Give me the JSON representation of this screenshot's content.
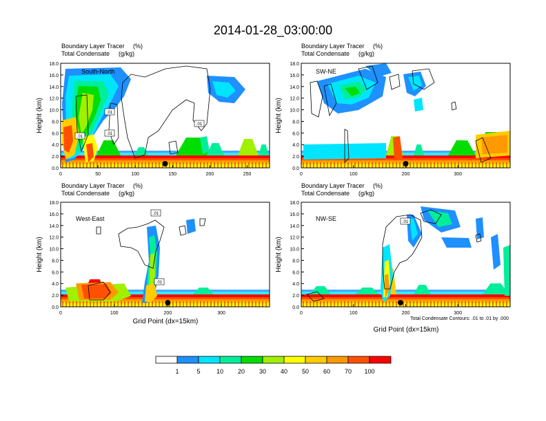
{
  "title": "2014-01-28_03:00:00",
  "panel_header": {
    "line1": "Boundary Layer Tracer",
    "line1_unit": "(%)",
    "line2": "Total Condensate",
    "line2_unit": "(g/kg)"
  },
  "xaxis_label": "Grid Point (dx=15km)",
  "yaxis_label": "Height (km)",
  "contour_note": "Total Condensate Contours: .01 to .01 by .000",
  "colorbar": {
    "labels": [
      "1",
      "5",
      "10",
      "20",
      "30",
      "40",
      "50",
      "60",
      "70",
      "100"
    ],
    "colors": [
      "#ffffff",
      "#1e90ff",
      "#00e5ff",
      "#00ee9a",
      "#00dd00",
      "#a0f000",
      "#ffff00",
      "#ffcc00",
      "#ff9900",
      "#ff5000",
      "#ff0000"
    ]
  },
  "chart_data": [
    {
      "type": "heatmap",
      "name": "South-North",
      "xlim": [
        0,
        280
      ],
      "xticks": [
        0,
        50,
        100,
        150,
        200,
        250
      ],
      "ylim": [
        0,
        18
      ],
      "yticks": [
        "0.0",
        "2.0",
        "4.0",
        "6.0",
        "8.0",
        "10.0",
        "12.0",
        "14.0",
        "16.0",
        "18.0"
      ],
      "contour_labels": [
        ".01",
        ".01",
        ".01",
        ".01"
      ],
      "marker_x": 140
    },
    {
      "type": "heatmap",
      "name": "SW-NE",
      "xlim": [
        0,
        400
      ],
      "xticks": [
        0,
        100,
        200,
        300
      ],
      "ylim": [
        0,
        18
      ],
      "yticks": [
        "0.0",
        "2.0",
        "4.0",
        "6.0",
        "8.0",
        "10.0",
        "12.0",
        "14.0",
        "16.0",
        "18.0"
      ],
      "contour_labels": [],
      "marker_x": 200
    },
    {
      "type": "heatmap",
      "name": "West-East",
      "xlim": [
        0,
        390
      ],
      "xticks": [
        0,
        100,
        200,
        300
      ],
      "ylim": [
        0,
        18
      ],
      "yticks": [
        "0.0",
        "2.0",
        "4.0",
        "6.0",
        "8.0",
        "10.0",
        "12.0",
        "14.0",
        "16.0",
        "18.0"
      ],
      "contour_labels": [
        ".01",
        ".01"
      ],
      "marker_x": 200
    },
    {
      "type": "heatmap",
      "name": "NW-SE",
      "xlim": [
        0,
        400
      ],
      "xticks": [
        0,
        100,
        200,
        300
      ],
      "ylim": [
        0,
        18
      ],
      "yticks": [
        "0.0",
        "2.0",
        "4.0",
        "6.0",
        "8.0",
        "10.0",
        "12.0",
        "14.0",
        "16.0",
        "18.0"
      ],
      "contour_labels": [
        ".01"
      ],
      "marker_x": 190
    }
  ]
}
